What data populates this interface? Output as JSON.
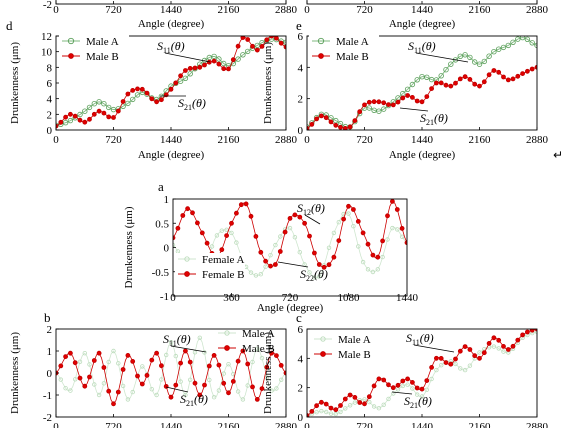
{
  "return_glyph": "↵",
  "chart_data": [
    {
      "id": "top-left",
      "panel_label": "",
      "type": "line",
      "xlabel": "Angle (degree)",
      "ylabel": "",
      "xlim": [
        0,
        2880
      ],
      "ylim": [
        -2,
        2
      ],
      "xticks": [
        "0",
        "720",
        "1440",
        "2160",
        "2880"
      ],
      "yticks": [
        "-2"
      ],
      "series": [],
      "annotations": []
    },
    {
      "id": "top-right",
      "panel_label": "",
      "type": "line",
      "xlabel": "Angle (degree)",
      "ylabel": "",
      "xlim": [
        0,
        2880
      ],
      "ylim": [
        0,
        6
      ],
      "xticks": [
        "0",
        "720",
        "1440",
        "2160",
        "2880"
      ],
      "yticks": [],
      "series": [],
      "annotations": []
    },
    {
      "id": "d",
      "panel_label": "d",
      "type": "line",
      "xlabel": "Angle (degree)",
      "ylabel": "Drunkenness (μm)",
      "xlim": [
        0,
        2880
      ],
      "ylim": [
        0,
        12
      ],
      "xticks": [
        "0",
        "720",
        "1440",
        "2160",
        "2880"
      ],
      "yticks": [
        "0",
        "2",
        "4",
        "6",
        "8",
        "10",
        "12"
      ],
      "series": [
        {
          "name": "Male A",
          "style": "green-open",
          "x": [
            0,
            180,
            360,
            540,
            720,
            900,
            1080,
            1260,
            1440,
            1620,
            1800,
            1980,
            2160,
            2340,
            2520,
            2700,
            2880
          ],
          "values": [
            0.6,
            1.2,
            2.4,
            3.6,
            2.6,
            3.4,
            4.8,
            3.9,
            5.6,
            6.6,
            8.4,
            9.4,
            8.2,
            9.6,
            10.8,
            11.6,
            11.2
          ]
        },
        {
          "name": "Male B",
          "style": "red-filled",
          "x": [
            0,
            180,
            360,
            540,
            720,
            900,
            1080,
            1260,
            1440,
            1620,
            1800,
            1980,
            2160,
            2340,
            2520,
            2700,
            2880
          ],
          "values": [
            0.5,
            2.0,
            1.0,
            2.4,
            1.6,
            4.6,
            5.2,
            3.6,
            5.2,
            7.6,
            8.0,
            8.8,
            7.8,
            11.8,
            10.2,
            12.0,
            10.6
          ]
        }
      ],
      "annotations": [
        {
          "main": "S",
          "sub": "11",
          "tail": "(θ)"
        },
        {
          "main": "S",
          "sub": "21",
          "tail": "(θ)"
        }
      ]
    },
    {
      "id": "e",
      "panel_label": "e",
      "type": "line",
      "xlabel": "Angle (degree)",
      "ylabel": "Drunkenness (μm)",
      "xlim": [
        0,
        2880
      ],
      "ylim": [
        0,
        6
      ],
      "xticks": [
        "0",
        "720",
        "1440",
        "2160",
        "2880"
      ],
      "yticks": [
        "0",
        "2",
        "4",
        "6"
      ],
      "series": [
        {
          "name": "Male A",
          "style": "green-open",
          "x": [
            0,
            180,
            360,
            540,
            720,
            900,
            1080,
            1260,
            1440,
            1620,
            1800,
            1980,
            2160,
            2340,
            2520,
            2700,
            2880
          ],
          "values": [
            0.2,
            1.0,
            0.6,
            0.2,
            1.4,
            1.2,
            1.8,
            2.6,
            3.4,
            3.2,
            4.2,
            4.8,
            4.2,
            5.0,
            5.4,
            5.9,
            5.4
          ]
        },
        {
          "name": "Male B",
          "style": "red-filled",
          "x": [
            0,
            180,
            360,
            540,
            720,
            900,
            1080,
            1260,
            1440,
            1620,
            1800,
            1980,
            2160,
            2340,
            2520,
            2700,
            2880
          ],
          "values": [
            0.1,
            0.9,
            0.3,
            0.2,
            1.6,
            1.8,
            1.6,
            2.2,
            1.8,
            3.0,
            2.8,
            3.4,
            2.8,
            3.8,
            3.2,
            3.6,
            4.0
          ]
        }
      ],
      "annotations": [
        {
          "main": "S",
          "sub": "11",
          "tail": "(θ)"
        },
        {
          "main": "S",
          "sub": "21",
          "tail": "(θ)"
        }
      ]
    },
    {
      "id": "a",
      "panel_label": "a",
      "type": "line",
      "xlabel": "Angle (degree)",
      "ylabel": "Drunkenness (μm)",
      "xlim": [
        0,
        1440
      ],
      "ylim": [
        -1,
        1
      ],
      "xticks": [
        "0",
        "360",
        "720",
        "1080",
        "1440"
      ],
      "yticks": [
        "-1",
        "-0.5",
        "0",
        "0.5",
        "1"
      ],
      "series": [
        {
          "name": "Female A",
          "style": "green-faint",
          "x": [
            0,
            90,
            180,
            270,
            360,
            450,
            540,
            630,
            720,
            810,
            900,
            990,
            1080,
            1170,
            1260,
            1350,
            1440
          ],
          "values": [
            0.05,
            -0.4,
            -0.5,
            0.25,
            0.3,
            -0.4,
            -0.55,
            0.05,
            0.4,
            -0.35,
            -0.6,
            0.3,
            0.7,
            -0.3,
            -0.45,
            0.4,
            0.1
          ]
        },
        {
          "name": "Female B",
          "style": "red-filled",
          "x": [
            0,
            90,
            180,
            270,
            360,
            450,
            540,
            630,
            720,
            810,
            900,
            990,
            1080,
            1170,
            1260,
            1350,
            1440
          ],
          "values": [
            0.2,
            0.8,
            0.3,
            -0.2,
            0.5,
            0.9,
            -0.1,
            -0.35,
            0.6,
            0.5,
            -0.35,
            -0.2,
            0.85,
            0.3,
            -0.2,
            0.95,
            0.1
          ]
        }
      ],
      "annotations": [
        {
          "main": "S",
          "sub": "12",
          "tail": "(θ)"
        },
        {
          "main": "S",
          "sub": "22",
          "tail": "(θ)"
        }
      ]
    },
    {
      "id": "b",
      "panel_label": "b",
      "type": "line",
      "xlabel": "",
      "ylabel": "Drunkenness (μm)",
      "xlim": [
        0,
        2880
      ],
      "ylim": [
        -2,
        2
      ],
      "xticks": [
        "0",
        "720",
        "1440",
        "2160",
        "2880"
      ],
      "yticks": [
        "-2",
        "-1",
        "0",
        "1",
        "2"
      ],
      "series": [
        {
          "name": "Male A",
          "style": "green-faint",
          "x": [
            0,
            180,
            360,
            540,
            720,
            900,
            1080,
            1260,
            1440,
            1620,
            1800,
            1980,
            2160,
            2340,
            2520,
            2700,
            2880
          ],
          "values": [
            0.0,
            -0.8,
            0.9,
            -1.0,
            1.0,
            -1.2,
            0.3,
            -1.0,
            1.4,
            -1.0,
            1.6,
            -1.1,
            0.4,
            -1.2,
            1.1,
            -0.8,
            0.0
          ]
        },
        {
          "name": "Male B",
          "style": "red-filled",
          "x": [
            0,
            180,
            360,
            540,
            720,
            900,
            1080,
            1260,
            1440,
            1620,
            1800,
            1980,
            2160,
            2340,
            2520,
            2700,
            2880
          ],
          "values": [
            0.0,
            0.9,
            -0.6,
            0.9,
            -1.4,
            0.8,
            -0.5,
            0.9,
            -1.1,
            1.0,
            -1.0,
            0.8,
            -0.9,
            1.0,
            -1.2,
            0.9,
            0.0
          ]
        }
      ],
      "annotations": [
        {
          "main": "S",
          "sub": "11",
          "tail": "(θ)"
        },
        {
          "main": "S",
          "sub": "21",
          "tail": "(θ)"
        }
      ]
    },
    {
      "id": "c",
      "panel_label": "c",
      "type": "line",
      "xlabel": "",
      "ylabel": "Drunkenness (μm)",
      "xlim": [
        0,
        2880
      ],
      "ylim": [
        0,
        6
      ],
      "xticks": [
        "0",
        "720",
        "1440",
        "2160",
        "2880"
      ],
      "yticks": [
        "0",
        "2",
        "4",
        "6"
      ],
      "series": [
        {
          "name": "Male A",
          "style": "green-faint",
          "x": [
            0,
            180,
            360,
            540,
            720,
            900,
            1080,
            1260,
            1440,
            1620,
            1800,
            1980,
            2160,
            2340,
            2520,
            2700,
            2880
          ],
          "values": [
            0.1,
            0.4,
            0.2,
            0.8,
            1.2,
            0.6,
            1.6,
            2.2,
            1.4,
            3.2,
            3.8,
            3.2,
            4.4,
            4.8,
            4.4,
            5.4,
            5.8
          ]
        },
        {
          "name": "Male B",
          "style": "red-filled",
          "x": [
            0,
            180,
            360,
            540,
            720,
            900,
            1080,
            1260,
            1440,
            1620,
            1800,
            1980,
            2160,
            2340,
            2520,
            2700,
            2880
          ],
          "values": [
            0.1,
            1.0,
            0.5,
            1.5,
            0.9,
            2.6,
            2.0,
            2.6,
            1.9,
            4.0,
            3.6,
            4.8,
            4.0,
            5.4,
            4.6,
            5.6,
            6.0
          ]
        }
      ],
      "annotations": [
        {
          "main": "S",
          "sub": "11",
          "tail": "(θ)"
        },
        {
          "main": "S",
          "sub": "21",
          "tail": "(θ)"
        }
      ]
    }
  ]
}
